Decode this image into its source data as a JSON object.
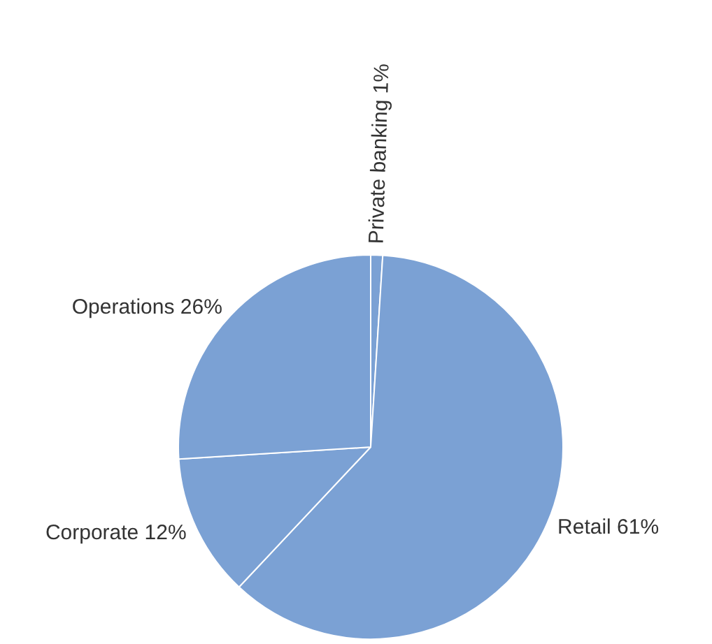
{
  "chart_data": {
    "type": "pie",
    "categories": [
      "Private banking",
      "Retail",
      "Corporate",
      "Operations"
    ],
    "values": [
      1,
      61,
      12,
      26
    ],
    "value_labels": [
      "1%",
      "61%",
      "12%",
      "26%"
    ],
    "colors": [
      "#7ba1d4",
      "#7ba1d4",
      "#7ba1d4",
      "#7ba1d4"
    ],
    "legend": false
  }
}
